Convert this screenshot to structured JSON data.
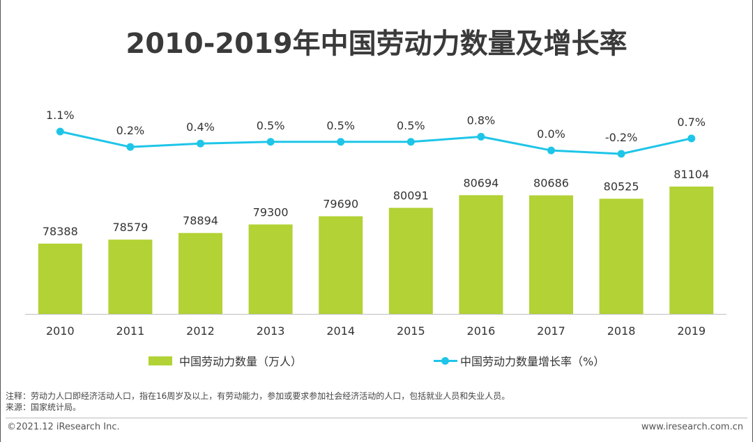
{
  "page": {
    "title": "2010-2019年中国劳动力数量及增长率",
    "note": "注释：劳动力人口即经济活动人口，指在16周岁及以上，有劳动能力，参加或要求参加社会经济活动的人口，包括就业人员和失业人员。",
    "source": "来源：国家统计局。",
    "copyright": "©2021.12 iResearch Inc.",
    "website": "www.iresearch.com.cn"
  },
  "chart_data": {
    "type": "bar+line",
    "title": "2010-2019年中国劳动力数量及增长率",
    "categories": [
      "2010",
      "2011",
      "2012",
      "2013",
      "2014",
      "2015",
      "2016",
      "2017",
      "2018",
      "2019"
    ],
    "series": [
      {
        "name": "中国劳动力数量（万人）",
        "type": "bar",
        "color": "#b2d235",
        "values": [
          78388,
          78579,
          78894,
          79300,
          79690,
          80091,
          80694,
          80686,
          80525,
          81104
        ],
        "labels": [
          "78388",
          "78579",
          "78894",
          "79300",
          "79690",
          "80091",
          "80694",
          "80686",
          "80525",
          "81104"
        ]
      },
      {
        "name": "中国劳动力数量增长率（%）",
        "type": "line",
        "color": "#1ec5e8",
        "values": [
          1.1,
          0.2,
          0.4,
          0.5,
          0.5,
          0.5,
          0.8,
          0.0,
          -0.2,
          0.7
        ],
        "labels": [
          "1.1%",
          "0.2%",
          "0.4%",
          "0.5%",
          "0.5%",
          "0.5%",
          "0.8%",
          "0.0%",
          "-0.2%",
          "0.7%"
        ]
      }
    ],
    "bar_axis_range": [
      74000,
      81500
    ],
    "line_axis_range": [
      -0.5,
      1.3
    ],
    "legend_position": "bottom",
    "grid": false
  }
}
